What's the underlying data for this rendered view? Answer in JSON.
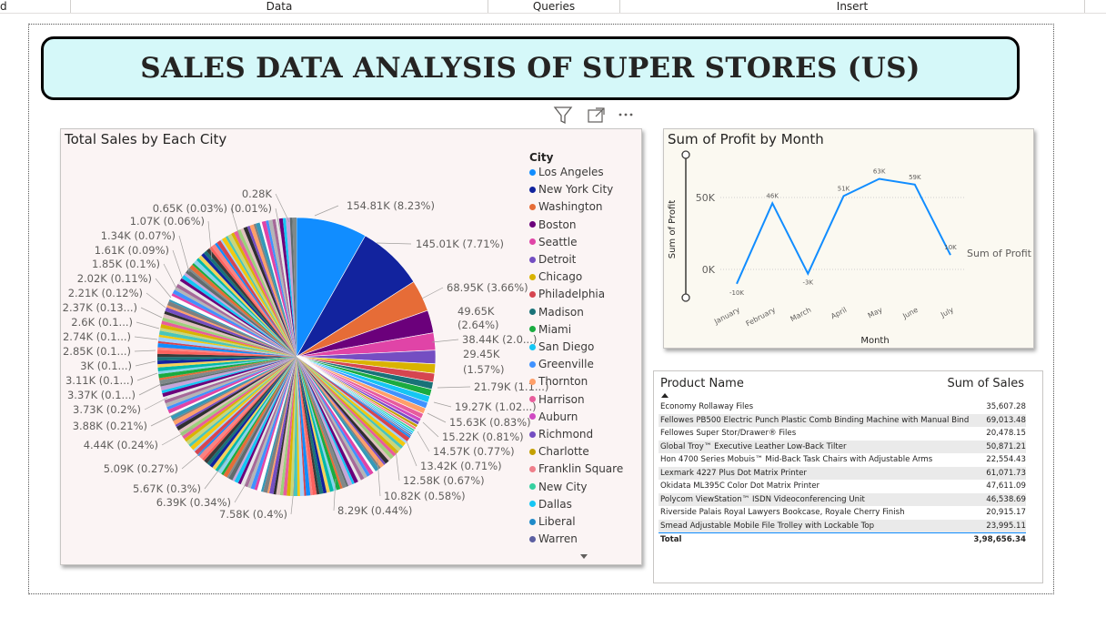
{
  "ribbon": {
    "partial_left": "d",
    "data": "Data",
    "queries": "Queries",
    "insert": "Insert"
  },
  "report_title": "SALES DATA ANALYSIS OF SUPER STORES (US)",
  "visual_header_icons": [
    "filter-icon",
    "focus-mode-icon",
    "more-options-icon"
  ],
  "pie_chart": {
    "title": "Total Sales by Each City",
    "legend_title": "City",
    "legend_items": [
      "Los Angeles",
      "New York City",
      "Washington",
      "Boston",
      "Seattle",
      "Detroit",
      "Chicago",
      "Philadelphia",
      "Madison",
      "Miami",
      "San Diego",
      "Greenville",
      "Thornton",
      "Harrison",
      "Auburn",
      "Richmond",
      "Charlotte",
      "Franklin Square",
      "New City",
      "Dallas",
      "Liberal",
      "Warren"
    ],
    "legend_colors": [
      "#118dff",
      "#12239e",
      "#e66c37",
      "#6b007b",
      "#e044a7",
      "#744ec2",
      "#d9b300",
      "#d64550",
      "#197278",
      "#1aab40",
      "#15c6f4",
      "#4092ff",
      "#ff9f69",
      "#e85d9c",
      "#cf49c2",
      "#744ec2",
      "#c4a000",
      "#ef7e8a",
      "#35d0a0",
      "#15c6f4",
      "#1f8ac9",
      "#5c5fa1"
    ],
    "labels": [
      "154.81K (8.23%)",
      "145.01K (7.71%)",
      "68.95K (3.66%)",
      "49.65K",
      "(2.64%)",
      "38.44K (2.0...)",
      "29.45K",
      "(1.57%)",
      "21.79K (1.1...)",
      "19.27K (1.02...)",
      "15.63K (0.83%)",
      "15.22K (0.81%)",
      "14.57K (0.77%)",
      "13.42K (0.71%)",
      "12.58K (0.67%)",
      "10.82K (0.58%)",
      "8.29K (0.44%)",
      "7.58K (0.4%)",
      "6.39K (0.34%)",
      "5.67K (0.3%)",
      "5.09K (0.27%)",
      "4.44K (0.24%)",
      "3.88K (0.21%)",
      "3.73K (0.2%)",
      "3.37K (0.1...)",
      "3.11K (0.1...)",
      "3K (0.1...)",
      "2.85K (0.1...)",
      "2.74K (0.1...)",
      "2.6K (0.1...)",
      "2.37K (0.13...)",
      "2.21K (0.12%)",
      "2.02K (0.11%)",
      "1.85K (0.1%)",
      "1.61K (0.09%)",
      "1.34K (0.07%)",
      "1.07K (0.06%)",
      "0.65K (0.03%)",
      "(0.01%)",
      "0.28K"
    ]
  },
  "line_chart": {
    "title": "Sum of Profit by Month",
    "xlabel": "Month",
    "ylabel": "Sum of Profit",
    "legend": "Sum of Profit",
    "y_ticks": [
      "50K",
      "0K"
    ],
    "line_color": "#118dff"
  },
  "chart_data": [
    {
      "type": "pie",
      "title": "Total Sales by Each City",
      "legend_title": "City",
      "categories": [
        "Los Angeles",
        "New York City",
        "Washington",
        "Boston",
        "Seattle",
        "Detroit",
        "Chicago",
        "Philadelphia",
        "Madison",
        "Miami",
        "San Diego",
        "Greenville",
        "Thornton",
        "Harrison",
        "Auburn",
        "Richmond",
        "Charlotte",
        "Franklin Square",
        "New City",
        "Dallas",
        "Liberal",
        "Warren"
      ],
      "values_k": [
        154.81,
        145.01,
        68.95,
        49.65,
        38.44,
        29.45,
        21.79,
        19.27,
        15.63,
        15.22,
        14.57,
        13.42,
        12.58,
        10.82,
        8.29,
        7.58,
        6.39,
        5.67,
        5.09,
        4.44,
        3.88,
        3.73
      ],
      "percents": [
        8.23,
        7.71,
        3.66,
        2.64,
        2.0,
        1.57,
        1.1,
        1.02,
        0.83,
        0.81,
        0.77,
        0.71,
        0.67,
        0.58,
        0.44,
        0.4,
        0.34,
        0.3,
        0.27,
        0.24,
        0.21,
        0.2
      ]
    },
    {
      "type": "line",
      "title": "Sum of Profit by Month",
      "xlabel": "Month",
      "ylabel": "Sum of Profit",
      "categories": [
        "January",
        "February",
        "March",
        "April",
        "May",
        "June",
        "July"
      ],
      "series": [
        {
          "name": "Sum of Profit",
          "values": [
            -10,
            46,
            -3,
            51,
            63,
            59,
            10
          ],
          "labels": [
            "-10K",
            "46K",
            "-3K",
            "51K",
            "63K",
            "59K",
            "10K"
          ]
        }
      ],
      "y_ticks": [
        0,
        50
      ]
    }
  ],
  "table": {
    "col_product": "Product Name",
    "col_sales": "Sum of Sales",
    "rows": [
      {
        "name": "Economy Rollaway Files",
        "sales": "35,607.28"
      },
      {
        "name": "Fellowes PB500 Electric Punch Plastic Comb Binding Machine with Manual Bind",
        "sales": "69,013.48"
      },
      {
        "name": "Fellowes Super Stor/Drawer® Files",
        "sales": "20,478.15"
      },
      {
        "name": "Global Troy™ Executive Leather Low-Back Tilter",
        "sales": "50,871.21"
      },
      {
        "name": "Hon 4700 Series Mobuis™ Mid-Back Task Chairs with Adjustable Arms",
        "sales": "22,554.43"
      },
      {
        "name": "Lexmark 4227 Plus Dot Matrix Printer",
        "sales": "61,071.73"
      },
      {
        "name": "Okidata ML395C Color Dot Matrix Printer",
        "sales": "47,611.09"
      },
      {
        "name": "Polycom ViewStation™ ISDN Videoconferencing Unit",
        "sales": "46,538.69"
      },
      {
        "name": "Riverside Palais Royal Lawyers Bookcase, Royale Cherry Finish",
        "sales": "20,915.17"
      },
      {
        "name": "Smead Adjustable Mobile File Trolley with Lockable Top",
        "sales": "23,995.11"
      }
    ],
    "total_label": "Total",
    "total_value": "3,98,656.34"
  }
}
